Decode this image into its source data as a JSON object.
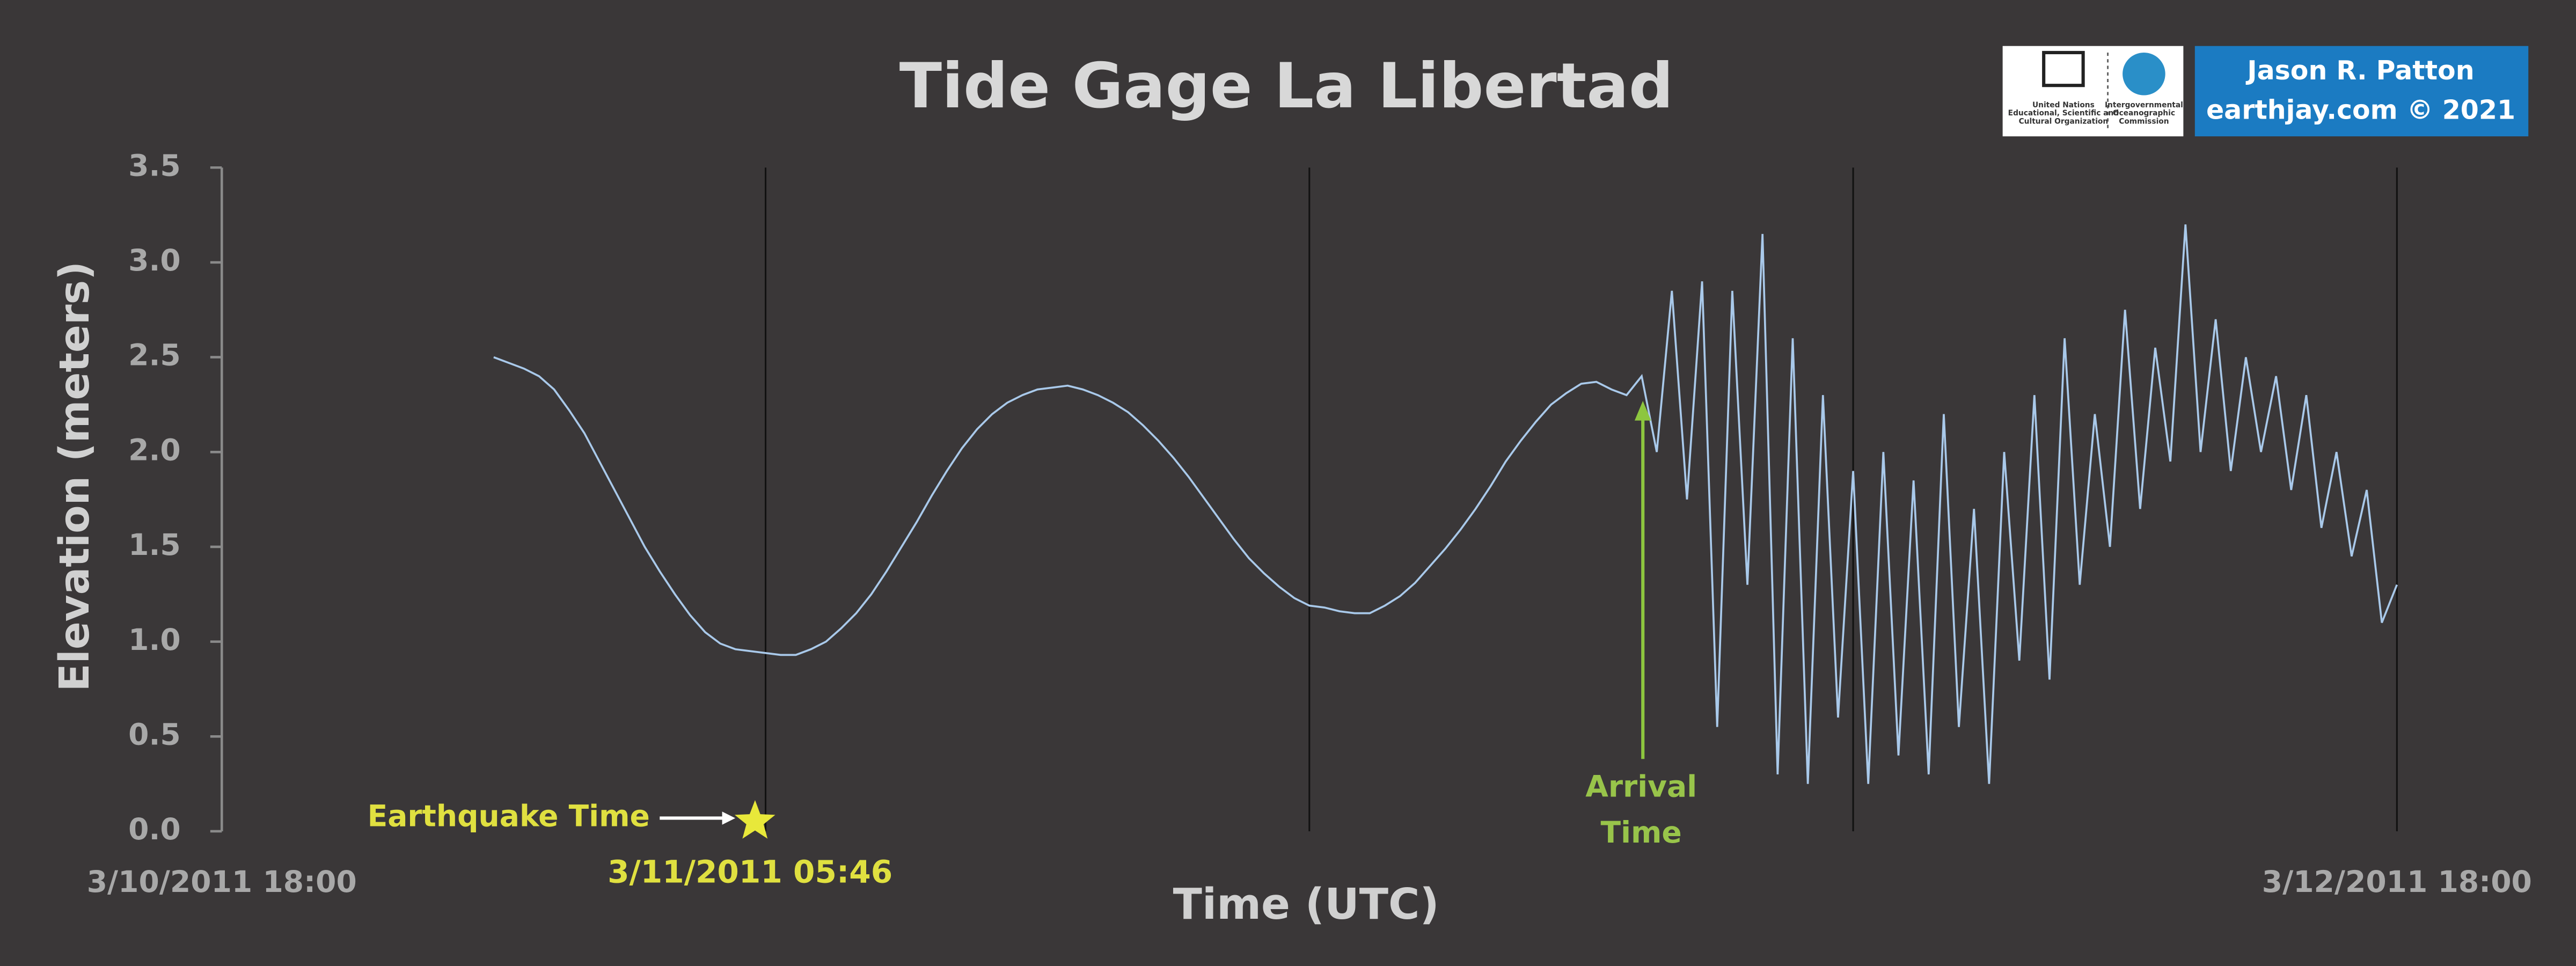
{
  "chart_data": {
    "type": "line",
    "title": "Tide Gage La Libertad",
    "xlabel": "Time (UTC)",
    "ylabel": "Elevation (meters)",
    "color": "#a9c9ea",
    "xlim": [
      "3/10/2011 18:00",
      "3/12/2011 18:00"
    ],
    "xticks": [
      "3/10/2011 18:00",
      {
        "value": "3/11/2011 06:00",
        "label": null
      },
      {
        "value": "3/11/2011 18:00",
        "label": null
      },
      {
        "value": "3/12/2011 06:00",
        "label": null
      },
      "3/12/2011 18:00"
    ],
    "ylim": [
      0,
      3.5
    ],
    "yticks": [
      {
        "value": 0,
        "label": "0.0"
      },
      0.5,
      {
        "value": 1,
        "label": "1.0"
      },
      1.5,
      {
        "value": 2,
        "label": "2.0"
      },
      2.5,
      {
        "value": 3,
        "label": "3.0"
      },
      3.5
    ],
    "grid": true,
    "earthquake": {
      "label": "Earthquake Time",
      "time": "3/11/2011 05:46"
    },
    "arrival": {
      "label": [
        "Arrival",
        "Time"
      ]
    },
    "credits": {
      "author": "Jason R. Patton",
      "site": "earthjay.com © 2021",
      "unesco": [
        "United Nations",
        "Educational, Scientific and",
        "Cultural Organization"
      ],
      "ioc": [
        "Intergovernmental",
        "Oceanographic",
        "Commission"
      ]
    },
    "x": [
      "3/11/2011 00:00",
      "3/11/2011 00:20",
      "3/11/2011 00:40",
      "3/11/2011 01:00",
      "3/11/2011 01:20",
      "3/11/2011 01:40",
      "3/11/2011 02:00",
      "3/11/2011 02:20",
      "3/11/2011 02:40",
      "3/11/2011 03:00",
      "3/11/2011 03:20",
      "3/11/2011 03:40",
      "3/11/2011 04:00",
      "3/11/2011 04:20",
      "3/11/2011 04:40",
      "3/11/2011 05:00",
      "3/11/2011 05:20",
      "3/11/2011 05:40",
      "3/11/2011 06:00",
      "3/11/2011 06:20",
      "3/11/2011 06:40",
      "3/11/2011 07:00",
      "3/11/2011 07:20",
      "3/11/2011 07:40",
      "3/11/2011 08:00",
      "3/11/2011 08:20",
      "3/11/2011 08:40",
      "3/11/2011 09:00",
      "3/11/2011 09:20",
      "3/11/2011 09:40",
      "3/11/2011 10:00",
      "3/11/2011 10:20",
      "3/11/2011 10:40",
      "3/11/2011 11:00",
      "3/11/2011 11:20",
      "3/11/2011 11:40",
      "3/11/2011 12:00",
      "3/11/2011 12:20",
      "3/11/2011 12:40",
      "3/11/2011 13:00",
      "3/11/2011 13:20",
      "3/11/2011 13:40",
      "3/11/2011 14:00",
      "3/11/2011 14:20",
      "3/11/2011 14:40",
      "3/11/2011 15:00",
      "3/11/2011 15:20",
      "3/11/2011 15:40",
      "3/11/2011 16:00",
      "3/11/2011 16:20",
      "3/11/2011 16:40",
      "3/11/2011 17:00",
      "3/11/2011 17:20",
      "3/11/2011 17:40",
      "3/11/2011 18:00",
      "3/11/2011 18:20",
      "3/11/2011 18:40",
      "3/11/2011 19:00",
      "3/11/2011 19:20",
      "3/11/2011 19:40",
      "3/11/2011 20:00",
      "3/11/2011 20:20",
      "3/11/2011 20:40",
      "3/11/2011 21:00",
      "3/11/2011 21:20",
      "3/11/2011 21:40",
      "3/11/2011 22:00",
      "3/11/2011 22:20",
      "3/11/2011 22:40",
      "3/11/2011 23:00",
      "3/11/2011 23:20",
      "3/11/2011 23:40",
      "3/12/2011 00:00",
      "3/12/2011 00:20",
      "3/12/2011 00:40",
      "3/12/2011 01:00",
      "3/12/2011 01:20",
      "3/12/2011 01:40",
      "3/12/2011 02:00",
      "3/12/2011 02:20",
      "3/12/2011 02:40",
      "3/12/2011 03:00",
      "3/12/2011 03:20",
      "3/12/2011 03:40",
      "3/12/2011 04:00",
      "3/12/2011 04:20",
      "3/12/2011 04:40",
      "3/12/2011 05:00",
      "3/12/2011 05:20",
      "3/12/2011 05:40",
      "3/12/2011 06:00",
      "3/12/2011 06:20",
      "3/12/2011 06:40",
      "3/12/2011 07:00",
      "3/12/2011 07:20",
      "3/12/2011 07:40",
      "3/12/2011 08:00",
      "3/12/2011 08:20",
      "3/12/2011 08:40",
      "3/12/2011 09:00",
      "3/12/2011 09:20",
      "3/12/2011 09:40",
      "3/12/2011 10:00",
      "3/12/2011 10:20",
      "3/12/2011 10:40",
      "3/12/2011 11:00",
      "3/12/2011 11:20",
      "3/12/2011 11:40",
      "3/12/2011 12:00",
      "3/12/2011 12:20",
      "3/12/2011 12:40",
      "3/12/2011 13:00",
      "3/12/2011 13:20",
      "3/12/2011 13:40",
      "3/12/2011 14:00",
      "3/12/2011 14:20",
      "3/12/2011 14:40",
      "3/12/2011 15:00",
      "3/12/2011 15:20",
      "3/12/2011 15:40",
      "3/12/2011 16:00",
      "3/12/2011 16:20",
      "3/12/2011 16:40",
      "3/12/2011 17:00",
      "3/12/2011 17:20",
      "3/12/2011 17:40",
      "3/12/2011 18:00"
    ],
    "values": [
      2.5,
      2.47,
      2.44,
      2.4,
      2.33,
      2.22,
      2.1,
      1.95,
      1.8,
      1.65,
      1.5,
      1.37,
      1.25,
      1.14,
      1.05,
      0.99,
      0.96,
      0.95,
      0.94,
      0.93,
      0.93,
      0.96,
      1.0,
      1.07,
      1.15,
      1.25,
      1.37,
      1.5,
      1.63,
      1.77,
      1.9,
      2.02,
      2.12,
      2.2,
      2.26,
      2.3,
      2.33,
      2.34,
      2.35,
      2.33,
      2.3,
      2.26,
      2.21,
      2.14,
      2.06,
      1.97,
      1.87,
      1.76,
      1.65,
      1.54,
      1.44,
      1.36,
      1.29,
      1.23,
      1.19,
      1.18,
      1.16,
      1.15,
      1.15,
      1.19,
      1.24,
      1.31,
      1.4,
      1.49,
      1.59,
      1.7,
      1.82,
      1.95,
      2.06,
      2.16,
      2.25,
      2.31,
      2.36,
      2.37,
      2.33,
      2.3,
      2.4,
      2.0,
      2.85,
      1.75,
      2.9,
      0.55,
      2.85,
      1.3,
      3.15,
      0.3,
      2.6,
      0.25,
      2.3,
      0.6,
      1.9,
      0.25,
      2.0,
      0.4,
      1.85,
      0.3,
      2.2,
      0.55,
      1.7,
      0.25,
      2.0,
      0.9,
      2.3,
      0.8,
      2.6,
      1.3,
      2.2,
      1.5,
      2.75,
      1.7,
      2.55,
      1.95,
      3.2,
      2.0,
      2.7,
      1.9,
      2.5,
      2.0,
      2.4,
      1.8,
      2.3,
      1.6,
      2.0,
      1.45,
      1.8,
      1.1,
      1.3
    ]
  }
}
